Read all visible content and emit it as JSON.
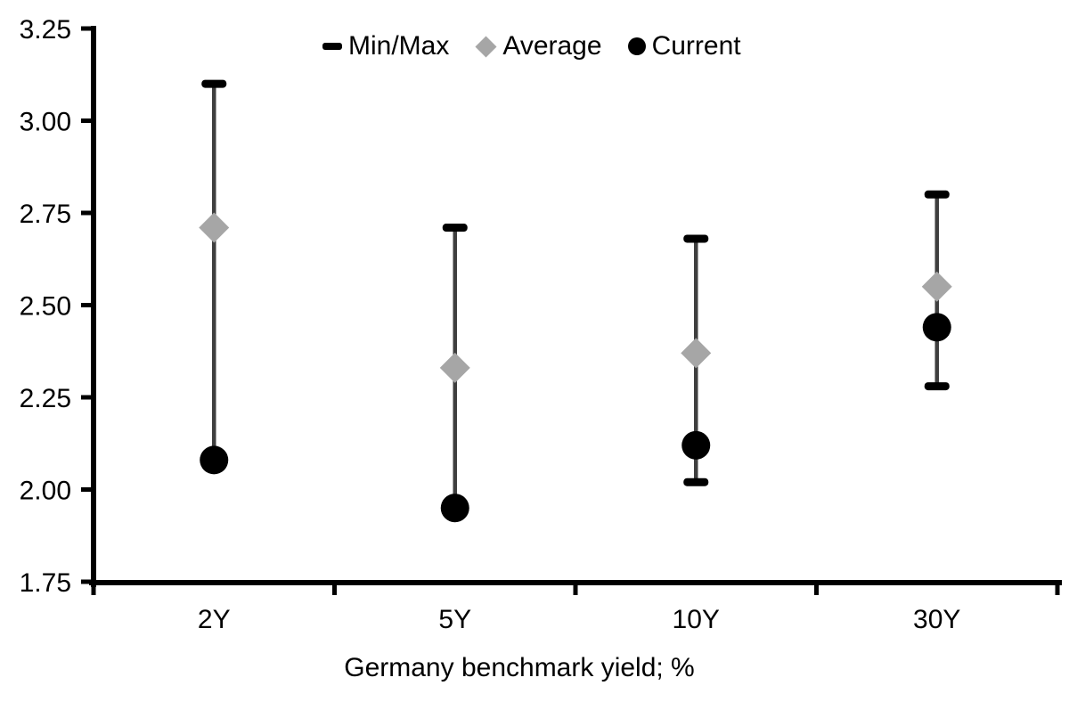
{
  "chart_data": {
    "type": "range",
    "title": "",
    "xlabel": "Germany benchmark yield; %",
    "ylabel": "",
    "ylim": [
      1.75,
      3.25
    ],
    "ytick_step": 0.25,
    "yticks": [
      "3.25",
      "3.00",
      "2.75",
      "2.50",
      "2.25",
      "2.00",
      "1.75"
    ],
    "categories": [
      "2Y",
      "5Y",
      "10Y",
      "30Y"
    ],
    "grid": false,
    "legend_position": "top",
    "background": "#ffffff",
    "whisker_color": "#3f3f3f",
    "series": [
      {
        "name": "Min/Max",
        "marker": "dash",
        "color": "#000000",
        "min": [
          2.08,
          1.95,
          2.02,
          2.28
        ],
        "max": [
          3.1,
          2.71,
          2.68,
          2.8
        ]
      },
      {
        "name": "Average",
        "marker": "diamond",
        "color": "#a6a6a6",
        "values": [
          2.71,
          2.33,
          2.37,
          2.55
        ]
      },
      {
        "name": "Current",
        "marker": "circle",
        "color": "#000000",
        "values": [
          2.08,
          1.95,
          2.12,
          2.44
        ]
      }
    ]
  }
}
